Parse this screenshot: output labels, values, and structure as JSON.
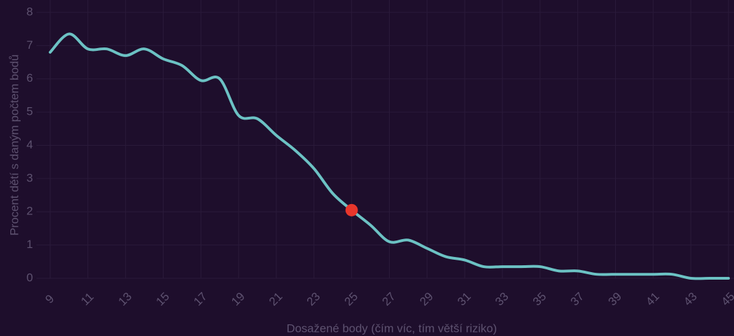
{
  "chart_data": {
    "type": "line",
    "xlabel": "Dosažené body (čím víc, tím větší riziko)",
    "ylabel": "Procent dětí s daným počtem bodů",
    "x": [
      9,
      10,
      11,
      12,
      13,
      14,
      15,
      16,
      17,
      18,
      19,
      20,
      21,
      22,
      23,
      24,
      25,
      26,
      27,
      28,
      29,
      30,
      31,
      32,
      33,
      34,
      35,
      36,
      37,
      38,
      39,
      40,
      41,
      42,
      43,
      44,
      45
    ],
    "series": [
      {
        "name": "Procent dětí",
        "color": "#6cc2c4",
        "values": [
          6.8,
          7.35,
          6.9,
          6.9,
          6.7,
          6.9,
          6.6,
          6.4,
          5.95,
          6.0,
          4.9,
          4.8,
          4.3,
          3.85,
          3.3,
          2.55,
          2.05,
          1.6,
          1.1,
          1.15,
          0.9,
          0.65,
          0.55,
          0.35,
          0.35,
          0.35,
          0.35,
          0.22,
          0.22,
          0.12,
          0.12,
          0.12,
          0.12,
          0.12,
          0,
          0,
          0
        ]
      }
    ],
    "highlight": {
      "x": 25,
      "y": 2.05,
      "color": "#e8362b"
    },
    "xlim": [
      9,
      45
    ],
    "xticks": [
      9,
      11,
      13,
      15,
      17,
      19,
      21,
      23,
      25,
      27,
      29,
      31,
      33,
      35,
      37,
      39,
      41,
      43,
      45
    ],
    "ylim": [
      0,
      8
    ],
    "yticks": [
      0,
      1,
      2,
      3,
      4,
      5,
      6,
      7,
      8
    ],
    "grid": true
  }
}
